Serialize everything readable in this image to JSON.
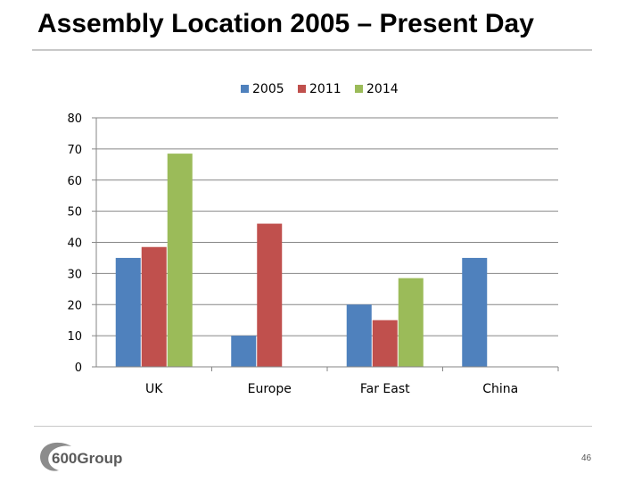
{
  "slide": {
    "title": "Assembly Location 2005 – Present Day",
    "page_number": "46",
    "logo_text": "600Group"
  },
  "chart_data": {
    "type": "bar",
    "categories": [
      "UK",
      "Europe",
      "Far East",
      "China"
    ],
    "series": [
      {
        "name": "2005",
        "color": "#4f81bd",
        "values": [
          35,
          10,
          20,
          35
        ]
      },
      {
        "name": "2011",
        "color": "#c0504d",
        "values": [
          38.5,
          46,
          15,
          0
        ]
      },
      {
        "name": "2014",
        "color": "#9bbb59",
        "values": [
          68.5,
          0,
          28.5,
          0
        ]
      }
    ],
    "ylim": [
      0,
      80
    ],
    "yticks": [
      0,
      10,
      20,
      30,
      40,
      50,
      60,
      70,
      80
    ],
    "grid": true,
    "legend_position": "top"
  }
}
